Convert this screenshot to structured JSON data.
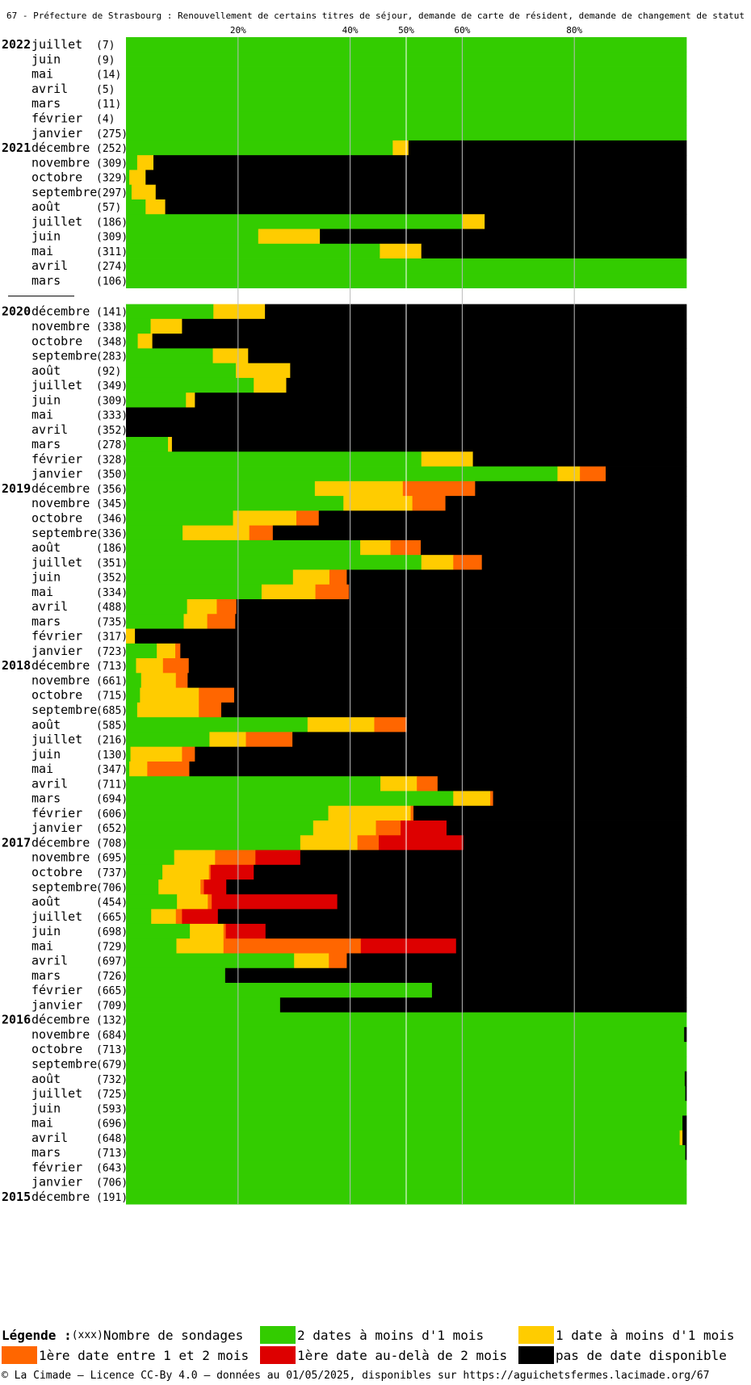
{
  "title": "67 - Préfecture de Strasbourg : Renouvellement de certains titres de séjour, demande de carte de résident, demande de changement de statut",
  "legend": {
    "heading": "Légende :",
    "count_hint": "(xxx)",
    "count_label": "Nombre de sondages",
    "items": [
      {
        "key": "g",
        "label": "2 dates à moins d'1 mois",
        "color": "#33cc00"
      },
      {
        "key": "y",
        "label": "1 date à moins d'1 mois",
        "color": "#ffcc00"
      },
      {
        "key": "o",
        "label": "1ère date entre 1 et 2 mois",
        "color": "#ff6600"
      },
      {
        "key": "r",
        "label": "1ère date au-delà de 2 mois",
        "color": "#dd0000"
      },
      {
        "key": "b",
        "label": "pas de date disponible",
        "color": "#000000"
      }
    ]
  },
  "footer": "© La Cimade – Licence CC-By 4.0 – données au 01/05/2025, disponibles sur https://aguichetsfermes.lacimade.org/67",
  "chart_data": {
    "type": "bar",
    "orientation": "horizontal-stacked-percent",
    "x_ticks": [
      "20%",
      "40%",
      "50%",
      "60%",
      "80%"
    ],
    "x_tick_values": [
      20,
      40,
      50,
      60,
      80
    ],
    "xlim": [
      0,
      100
    ],
    "series_order": [
      "g",
      "y",
      "o",
      "r",
      "b"
    ],
    "rows": [
      {
        "year": "2022",
        "month": "juillet",
        "count": "(7)",
        "g": 100,
        "y": 0,
        "o": 0,
        "r": 0,
        "b": 0
      },
      {
        "month": "juin",
        "count": "(9)",
        "g": 100,
        "y": 0,
        "o": 0,
        "r": 0,
        "b": 0
      },
      {
        "month": "mai",
        "count": "(14)",
        "g": 100,
        "y": 0,
        "o": 0,
        "r": 0,
        "b": 0
      },
      {
        "month": "avril",
        "count": "(5)",
        "g": 100,
        "y": 0,
        "o": 0,
        "r": 0,
        "b": 0
      },
      {
        "month": "mars",
        "count": "(11)",
        "g": 100,
        "y": 0,
        "o": 0,
        "r": 0,
        "b": 0
      },
      {
        "month": "février",
        "count": "(4)",
        "g": 100,
        "y": 0,
        "o": 0,
        "r": 0,
        "b": 0
      },
      {
        "month": "janvier",
        "count": "(275)",
        "g": 100,
        "y": 0,
        "o": 0,
        "r": 0,
        "b": 0
      },
      {
        "year": "2021",
        "month": "décembre",
        "count": "(252)",
        "g": 47.6,
        "y": 2.8,
        "o": 0,
        "r": 0,
        "b": 49.6
      },
      {
        "month": "novembre",
        "count": "(309)",
        "g": 2,
        "y": 2.9,
        "o": 0,
        "r": 0,
        "b": 95.1
      },
      {
        "month": "octobre",
        "count": "(329)",
        "g": 0.6,
        "y": 2.9,
        "o": 0,
        "r": 0,
        "b": 96.5
      },
      {
        "month": "septembre",
        "count": "(297)",
        "g": 1,
        "y": 4.3,
        "o": 0,
        "r": 0,
        "b": 94.7
      },
      {
        "month": "août",
        "count": "(57)",
        "g": 3.5,
        "y": 3.5,
        "o": 0,
        "r": 0,
        "b": 93
      },
      {
        "month": "juillet",
        "count": "(186)",
        "g": 60,
        "y": 4,
        "o": 0,
        "r": 0,
        "b": 36
      },
      {
        "month": "juin",
        "count": "(309)",
        "g": 23.6,
        "y": 11,
        "o": 0,
        "r": 0,
        "b": 65.4
      },
      {
        "month": "mai",
        "count": "(311)",
        "g": 45.3,
        "y": 7.4,
        "o": 0,
        "r": 0,
        "b": 47.3
      },
      {
        "month": "avril",
        "count": "(274)",
        "g": 100,
        "y": 0,
        "o": 0,
        "r": 0,
        "b": 0
      },
      {
        "month": "mars",
        "count": "(106)",
        "g": 100,
        "y": 0,
        "o": 0,
        "r": 0,
        "b": 0,
        "gap_after": true
      },
      {
        "year": "2020",
        "month": "décembre",
        "count": "(141)",
        "g": 15.6,
        "y": 9.2,
        "o": 0,
        "r": 0,
        "b": 75.2
      },
      {
        "month": "novembre",
        "count": "(338)",
        "g": 4.4,
        "y": 5.6,
        "o": 0,
        "r": 0,
        "b": 90
      },
      {
        "month": "octobre",
        "count": "(348)",
        "g": 2.1,
        "y": 2.6,
        "o": 0,
        "r": 0,
        "b": 95.3
      },
      {
        "month": "septembre",
        "count": "(283)",
        "g": 15.5,
        "y": 6.3,
        "o": 0,
        "r": 0,
        "b": 78.2
      },
      {
        "month": "août",
        "count": "(92)",
        "g": 19.6,
        "y": 9.7,
        "o": 0,
        "r": 0,
        "b": 70.7
      },
      {
        "month": "juillet",
        "count": "(349)",
        "g": 22.8,
        "y": 5.8,
        "o": 0,
        "r": 0,
        "b": 71.4
      },
      {
        "month": "juin",
        "count": "(309)",
        "g": 10.7,
        "y": 1.6,
        "o": 0,
        "r": 0,
        "b": 87.7
      },
      {
        "month": "mai",
        "count": "(333)",
        "g": 0,
        "y": 0,
        "o": 0,
        "r": 0,
        "b": 100
      },
      {
        "month": "avril",
        "count": "(352)",
        "g": 0,
        "y": 0,
        "o": 0,
        "r": 0,
        "b": 100
      },
      {
        "month": "mars",
        "count": "(278)",
        "g": 7.5,
        "y": 0.7,
        "o": 0,
        "r": 0,
        "b": 91.8
      },
      {
        "month": "février",
        "count": "(328)",
        "g": 52.7,
        "y": 9.2,
        "o": 0,
        "r": 0,
        "b": 38.1
      },
      {
        "month": "janvier",
        "count": "(350)",
        "g": 77,
        "y": 4,
        "o": 4.6,
        "r": 0,
        "b": 14.4
      },
      {
        "year": "2019",
        "month": "décembre",
        "count": "(356)",
        "g": 33.7,
        "y": 15.7,
        "o": 12.9,
        "r": 0,
        "b": 37.7
      },
      {
        "month": "novembre",
        "count": "(345)",
        "g": 38.8,
        "y": 12.3,
        "o": 5.9,
        "r": 0,
        "b": 43
      },
      {
        "month": "octobre",
        "count": "(346)",
        "g": 19.1,
        "y": 11.3,
        "o": 4,
        "r": 0,
        "b": 65.6
      },
      {
        "month": "septembre",
        "count": "(336)",
        "g": 10.1,
        "y": 11.9,
        "o": 4.2,
        "r": 0,
        "b": 73.8
      },
      {
        "month": "août",
        "count": "(186)",
        "g": 41.8,
        "y": 5.4,
        "o": 5.4,
        "r": 0,
        "b": 47.4
      },
      {
        "month": "juillet",
        "count": "(351)",
        "g": 52.7,
        "y": 5.7,
        "o": 5.1,
        "r": 0,
        "b": 36.5
      },
      {
        "month": "juin",
        "count": "(352)",
        "g": 29.8,
        "y": 6.5,
        "o": 3.1,
        "r": 0,
        "b": 60.6
      },
      {
        "month": "mai",
        "count": "(334)",
        "g": 24.2,
        "y": 9.6,
        "o": 6,
        "r": 0,
        "b": 60.2
      },
      {
        "month": "avril",
        "count": "(488)",
        "g": 10.9,
        "y": 5.3,
        "o": 3.5,
        "r": 0,
        "b": 80.3
      },
      {
        "month": "mars",
        "count": "(735)",
        "g": 10.3,
        "y": 4.2,
        "o": 5,
        "r": 0,
        "b": 80.5
      },
      {
        "month": "février",
        "count": "(317)",
        "g": 0,
        "y": 1.6,
        "o": 0,
        "r": 0,
        "b": 98.4
      },
      {
        "month": "janvier",
        "count": "(723)",
        "g": 5.5,
        "y": 3.3,
        "o": 0.9,
        "r": 0,
        "b": 90.3
      },
      {
        "year": "2018",
        "month": "décembre",
        "count": "(713)",
        "g": 1.8,
        "y": 4.8,
        "o": 4.6,
        "r": 0,
        "b": 88.8
      },
      {
        "month": "novembre",
        "count": "(661)",
        "g": 2.7,
        "y": 6.2,
        "o": 2.1,
        "r": 0,
        "b": 89
      },
      {
        "month": "octobre",
        "count": "(715)",
        "g": 2.5,
        "y": 10.5,
        "o": 6.3,
        "r": 0,
        "b": 80.7
      },
      {
        "month": "septembre",
        "count": "(685)",
        "g": 2,
        "y": 11,
        "o": 4,
        "r": 0,
        "b": 83
      },
      {
        "month": "août",
        "count": "(585)",
        "g": 32.4,
        "y": 11.9,
        "o": 5.8,
        "r": 0,
        "b": 49.9
      },
      {
        "month": "juillet",
        "count": "(216)",
        "g": 14.9,
        "y": 6.5,
        "o": 8.3,
        "r": 0,
        "b": 70.3
      },
      {
        "month": "juin",
        "count": "(130)",
        "g": 0.8,
        "y": 9.2,
        "o": 2.3,
        "r": 0,
        "b": 87.7
      },
      {
        "month": "mai",
        "count": "(347)",
        "g": 0.6,
        "y": 3.2,
        "o": 7.5,
        "r": 0,
        "b": 88.7
      },
      {
        "month": "avril",
        "count": "(711)",
        "g": 45.4,
        "y": 6.5,
        "o": 3.7,
        "r": 0,
        "b": 44.4
      },
      {
        "month": "mars",
        "count": "(694)",
        "g": 58.4,
        "y": 6.6,
        "o": 0.5,
        "r": 0,
        "b": 34.5
      },
      {
        "month": "février",
        "count": "(606)",
        "g": 36.1,
        "y": 14.7,
        "o": 0.5,
        "r": 0,
        "b": 48.7
      },
      {
        "month": "janvier",
        "count": "(652)",
        "g": 33.4,
        "y": 11.2,
        "o": 4.4,
        "r": 8.2,
        "b": 42.8
      },
      {
        "year": "2017",
        "month": "décembre",
        "count": "(708)",
        "g": 31.1,
        "y": 10.2,
        "o": 3.8,
        "r": 15.1,
        "b": 39.8
      },
      {
        "month": "novembre",
        "count": "(695)",
        "g": 8.6,
        "y": 7.3,
        "o": 7.2,
        "r": 8,
        "b": 68.9
      },
      {
        "month": "octobre",
        "count": "(737)",
        "g": 6.5,
        "y": 8.3,
        "o": 0.3,
        "r": 7.7,
        "b": 77.2
      },
      {
        "month": "septembre",
        "count": "(706)",
        "g": 5.8,
        "y": 7.5,
        "o": 0.6,
        "r": 4,
        "b": 82.1
      },
      {
        "month": "août",
        "count": "(454)",
        "g": 9.1,
        "y": 5.5,
        "o": 0.7,
        "r": 22.4,
        "b": 62.3
      },
      {
        "month": "juillet",
        "count": "(665)",
        "g": 4.5,
        "y": 4.4,
        "o": 1.1,
        "r": 6.4,
        "b": 83.6
      },
      {
        "month": "juin",
        "count": "(698)",
        "g": 11.4,
        "y": 6,
        "o": 0.4,
        "r": 7.1,
        "b": 75.1
      },
      {
        "month": "mai",
        "count": "(729)",
        "g": 9,
        "y": 8.4,
        "o": 24.5,
        "r": 17,
        "b": 41.1
      },
      {
        "month": "avril",
        "count": "(697)",
        "g": 30,
        "y": 6.2,
        "o": 3.2,
        "r": 0,
        "b": 60.6
      },
      {
        "month": "mars",
        "count": "(726)",
        "g": 17.7,
        "y": 0,
        "o": 0,
        "r": 0,
        "b": 82.3
      },
      {
        "month": "février",
        "count": "(665)",
        "g": 54.6,
        "y": 0,
        "o": 0,
        "r": 0,
        "b": 45.4
      },
      {
        "month": "janvier",
        "count": "(709)",
        "g": 27.5,
        "y": 0,
        "o": 0,
        "r": 0,
        "b": 72.5
      },
      {
        "year": "2016",
        "month": "décembre",
        "count": "(132)",
        "g": 100,
        "y": 0,
        "o": 0,
        "r": 0,
        "b": 0
      },
      {
        "month": "novembre",
        "count": "(684)",
        "g": 99.6,
        "y": 0,
        "o": 0,
        "r": 0,
        "b": 0.4
      },
      {
        "month": "octobre",
        "count": "(713)",
        "g": 100,
        "y": 0,
        "o": 0,
        "r": 0,
        "b": 0
      },
      {
        "month": "septembre",
        "count": "(679)",
        "g": 100,
        "y": 0,
        "o": 0,
        "r": 0,
        "b": 0
      },
      {
        "month": "août",
        "count": "(732)",
        "g": 99.7,
        "y": 0,
        "o": 0,
        "r": 0,
        "b": 0.3
      },
      {
        "month": "juillet",
        "count": "(725)",
        "g": 99.8,
        "y": 0,
        "o": 0,
        "r": 0,
        "b": 0.2
      },
      {
        "month": "juin",
        "count": "(593)",
        "g": 100,
        "y": 0,
        "o": 0,
        "r": 0,
        "b": 0
      },
      {
        "month": "mai",
        "count": "(696)",
        "g": 99.3,
        "y": 0,
        "o": 0,
        "r": 0,
        "b": 0.7
      },
      {
        "month": "avril",
        "count": "(648)",
        "g": 98.8,
        "y": 0.5,
        "o": 0,
        "r": 0,
        "b": 0.7
      },
      {
        "month": "mars",
        "count": "(713)",
        "g": 99.8,
        "y": 0,
        "o": 0,
        "r": 0,
        "b": 0.2
      },
      {
        "month": "février",
        "count": "(643)",
        "g": 100,
        "y": 0,
        "o": 0,
        "r": 0,
        "b": 0
      },
      {
        "month": "janvier",
        "count": "(706)",
        "g": 100,
        "y": 0,
        "o": 0,
        "r": 0,
        "b": 0
      },
      {
        "year": "2015",
        "month": "décembre",
        "count": "(191)",
        "g": 100,
        "y": 0,
        "o": 0,
        "r": 0,
        "b": 0
      }
    ]
  }
}
